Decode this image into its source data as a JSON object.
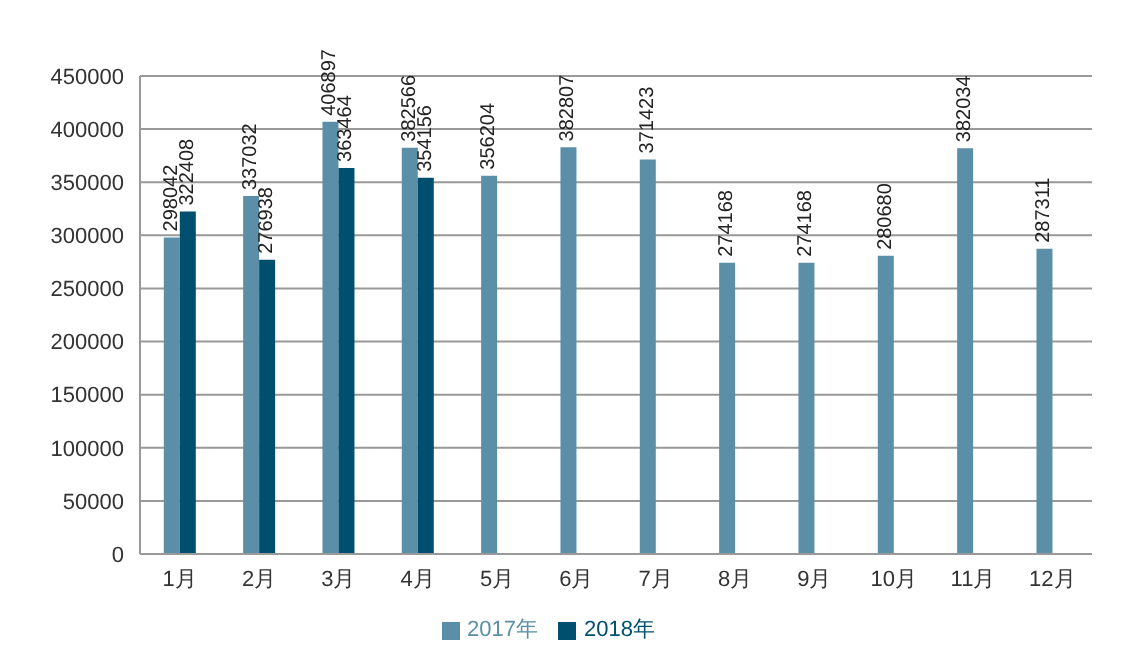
{
  "chart_data": {
    "type": "bar",
    "categories": [
      "1月",
      "2月",
      "3月",
      "4月",
      "5月",
      "6月",
      "7月",
      "8月",
      "9月",
      "10月",
      "11月",
      "12月"
    ],
    "series": [
      {
        "name": "2017年",
        "color": "#5b8fa8",
        "values": [
          298042,
          337032,
          406897,
          382566,
          356204,
          382807,
          371423,
          274168,
          274168,
          280680,
          382034,
          287311
        ]
      },
      {
        "name": "2018年",
        "color": "#004f6e",
        "values": [
          322408,
          276938,
          363464,
          354156,
          null,
          null,
          null,
          null,
          null,
          null,
          null,
          null
        ]
      }
    ],
    "ylim": [
      0,
      450000
    ],
    "yticks": [
      0,
      50000,
      100000,
      150000,
      200000,
      250000,
      300000,
      350000,
      400000,
      450000
    ],
    "grid": "y",
    "legend": "bottom",
    "data_labels": true
  }
}
